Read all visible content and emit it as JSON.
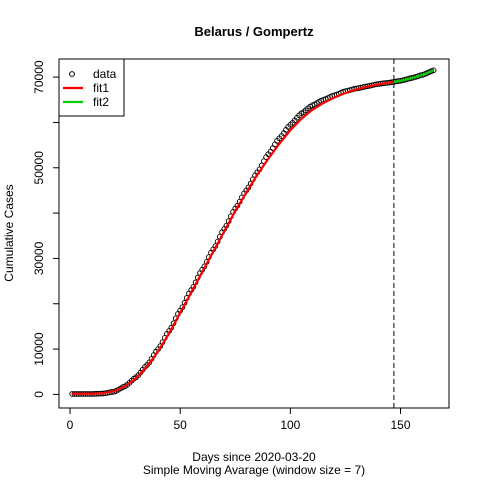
{
  "chart_data": {
    "type": "scatter",
    "title": "Belarus / Gompertz",
    "xlabel": "Days since 2020-03-20",
    "xlabel2": "Simple Moving Avarage (window size = 7)",
    "ylabel": "Cumulative Cases",
    "xlim": [
      -5,
      172
    ],
    "ylim": [
      -3000,
      74000
    ],
    "xticks": [
      0,
      50,
      100,
      150
    ],
    "yticks": [
      0,
      10000,
      20000,
      30000,
      40000,
      50000,
      60000,
      70000
    ],
    "yticks_labeled": [
      0,
      10000,
      30000,
      50000,
      70000
    ],
    "cutoff_x": 147,
    "legend": {
      "placement": "top-left",
      "entries": [
        {
          "label": "data",
          "style": "open-circle",
          "color": "#000000"
        },
        {
          "label": "fit1",
          "style": "line",
          "color": "#ff0000"
        },
        {
          "label": "fit2",
          "style": "line",
          "color": "#00cd00"
        }
      ]
    },
    "series": [
      {
        "name": "data",
        "x_start": 1,
        "x_end": 165,
        "anchor_x": [
          1,
          10,
          15,
          20,
          25,
          30,
          35,
          40,
          45,
          50,
          55,
          60,
          65,
          70,
          75,
          80,
          85,
          90,
          95,
          100,
          105,
          110,
          115,
          120,
          125,
          130,
          135,
          140,
          145,
          150,
          155,
          160,
          165
        ],
        "anchor_y": [
          100,
          100,
          200,
          600,
          1800,
          3800,
          6500,
          10000,
          14000,
          18500,
          23000,
          27500,
          32000,
          36500,
          41000,
          45000,
          49000,
          53000,
          56500,
          59500,
          62000,
          63800,
          65000,
          66000,
          66900,
          67500,
          68000,
          68500,
          68800,
          69200,
          69800,
          70500,
          71500
        ]
      },
      {
        "name": "fit1",
        "color": "#ff0000",
        "x": [
          1,
          10,
          15,
          20,
          25,
          30,
          35,
          40,
          45,
          50,
          55,
          60,
          65,
          70,
          75,
          80,
          85,
          90,
          95,
          100,
          105,
          110,
          115,
          120,
          125,
          130,
          135,
          140,
          145,
          147
        ],
        "y": [
          150,
          150,
          250,
          700,
          1800,
          3600,
          6200,
          9500,
          13500,
          18000,
          22500,
          27000,
          31500,
          36000,
          40500,
          44500,
          48500,
          52000,
          55300,
          58300,
          60800,
          62800,
          64300,
          65500,
          66500,
          67300,
          67900,
          68400,
          68800,
          69000
        ]
      },
      {
        "name": "fit2",
        "color": "#00cd00",
        "x": [
          147,
          150,
          155,
          160,
          165
        ],
        "y": [
          68900,
          69200,
          69800,
          70500,
          71500
        ]
      }
    ]
  }
}
